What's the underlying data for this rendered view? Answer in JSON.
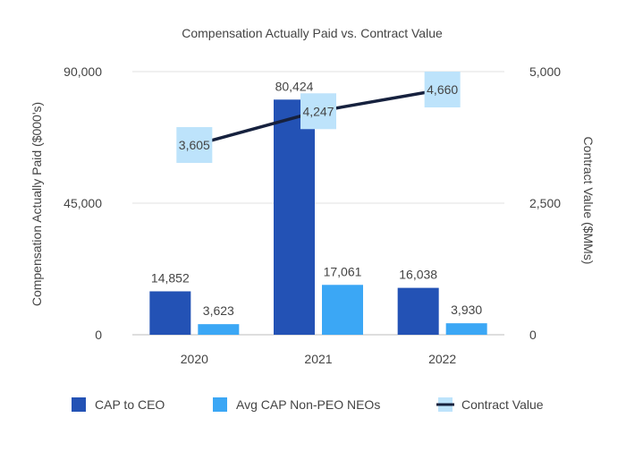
{
  "chart_data": {
    "type": "bar",
    "title": "Compensation Actually Paid vs. Contract Value",
    "categories": [
      "2020",
      "2021",
      "2022"
    ],
    "ylabel": "Compensation Actually Paid ($000's)",
    "ylim": [
      0,
      90000
    ],
    "yticks": [
      "0",
      "45,000",
      "90,000"
    ],
    "y2label": "Contract Value ($MMs)",
    "y2lim": [
      0,
      5000
    ],
    "y2ticks": [
      "0",
      "2,500",
      "5,000"
    ],
    "grid": true,
    "legend_position": "bottom",
    "series": [
      {
        "name": "CAP to CEO",
        "type": "bar",
        "axis": "left",
        "color": "#2352b5",
        "values": [
          14852,
          80424,
          16038
        ],
        "labels": [
          "14,852",
          "80,424",
          "16,038"
        ]
      },
      {
        "name": "Avg CAP Non-PEO NEOs",
        "type": "bar",
        "axis": "left",
        "color": "#3ba7f5",
        "values": [
          3623,
          17061,
          3930
        ],
        "labels": [
          "3,623",
          "17,061",
          "3,930"
        ]
      },
      {
        "name": "Contract Value",
        "type": "line",
        "axis": "right",
        "color": "#16213e",
        "marker_color": "#bde3fb",
        "values": [
          3605,
          4247,
          4660
        ],
        "labels": [
          "3,605",
          "4,247",
          "4,660"
        ]
      }
    ]
  }
}
